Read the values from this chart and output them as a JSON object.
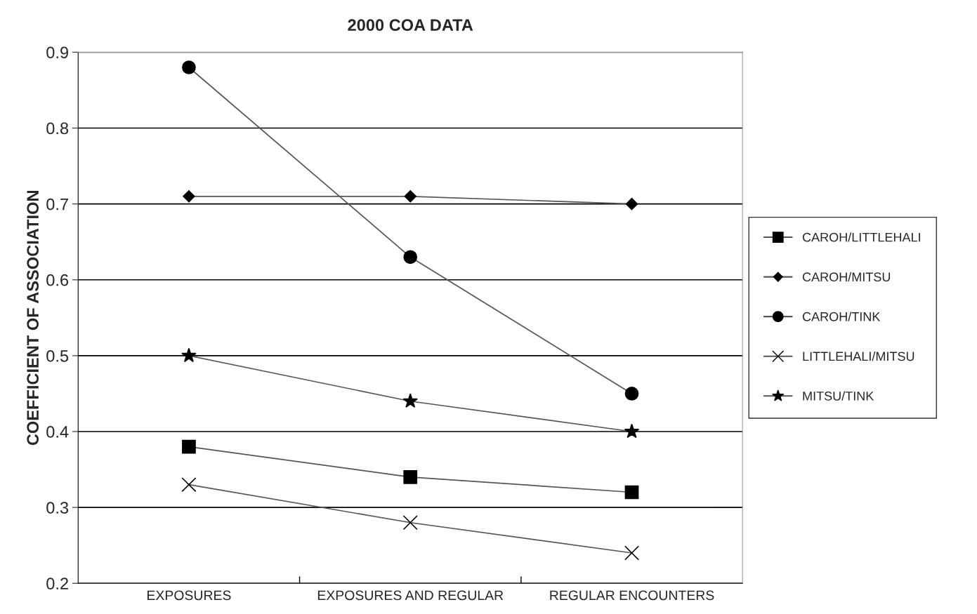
{
  "chart_data": {
    "type": "line",
    "title": "2000 COA DATA",
    "ylabel": "COEFFICIENT OF ASSOCIATION",
    "categories": [
      "EXPOSURES",
      "EXPOSURES AND REGULAR",
      "REGULAR ENCOUNTERS"
    ],
    "series": [
      {
        "name": "CAROH/LITTLEHALI",
        "color": "#000000",
        "marker": "square",
        "values": [
          0.38,
          0.34,
          0.32
        ]
      },
      {
        "name": "CAROH/MITSU",
        "color": "#000000",
        "marker": "diamond",
        "values": [
          0.71,
          0.71,
          0.7
        ]
      },
      {
        "name": "CAROH/TINK",
        "color": "#000000",
        "marker": "circle",
        "values": [
          0.88,
          0.63,
          0.45
        ]
      },
      {
        "name": "LITTLEHALI/MITSU",
        "color": "#000000",
        "marker": "cross",
        "values": [
          0.33,
          0.28,
          0.24
        ]
      },
      {
        "name": "MITSU/TINK",
        "color": "#000000",
        "marker": "star",
        "values": [
          0.5,
          0.44,
          0.4
        ]
      }
    ],
    "ylim": [
      0.2,
      0.9
    ],
    "yticks": [
      0.2,
      0.3,
      0.4,
      0.5,
      0.6,
      0.7,
      0.8,
      0.9
    ],
    "grid": "y",
    "legend": "right",
    "line_style": "solid"
  }
}
